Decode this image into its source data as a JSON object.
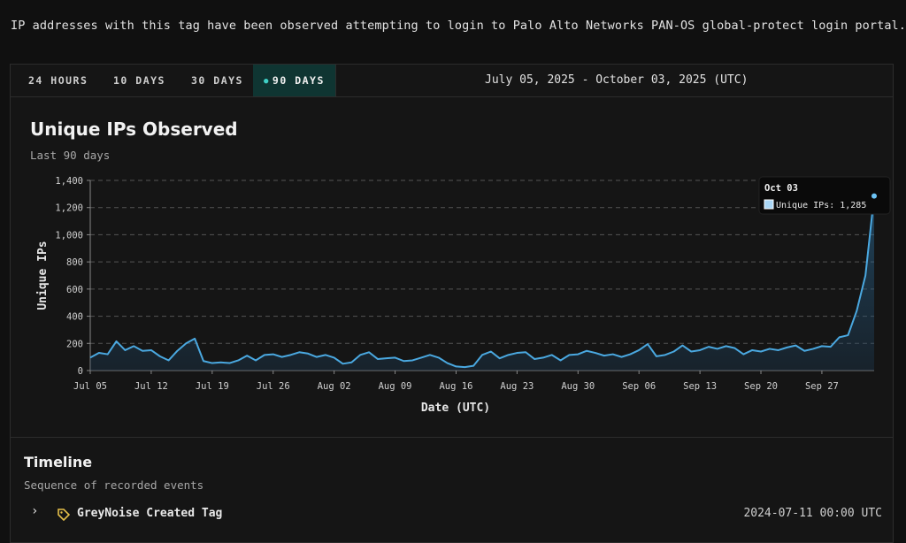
{
  "description": "IP addresses with this tag have been observed attempting to login to Palo Alto Networks PAN-OS global-protect login portal.",
  "tabs": [
    {
      "label": "24 HOURS",
      "active": false
    },
    {
      "label": "10 DAYS",
      "active": false
    },
    {
      "label": "30 DAYS",
      "active": false
    },
    {
      "label": "90 DAYS",
      "active": true
    }
  ],
  "date_range": "July 05, 2025 - October 03, 2025 (UTC)",
  "chart": {
    "title": "Unique IPs Observed",
    "subtitle": "Last 90 days"
  },
  "tooltip": {
    "date": "Oct 03",
    "label": "Unique IPs: 1,285"
  },
  "chart_data": {
    "type": "area",
    "title": "Unique IPs Observed",
    "subtitle": "Last 90 days",
    "xlabel": "Date (UTC)",
    "ylabel": "Unique IPs",
    "ylim": [
      0,
      1400
    ],
    "yticks": [
      "0",
      "200",
      "400",
      "600",
      "800",
      "1,000",
      "1,200",
      "1,400"
    ],
    "ytick_values": [
      0,
      200,
      400,
      600,
      800,
      1000,
      1200,
      1400
    ],
    "xticks": [
      "Jul 05",
      "Jul 12",
      "Jul 19",
      "Jul 26",
      "Aug 02",
      "Aug 09",
      "Aug 16",
      "Aug 23",
      "Aug 30",
      "Sep 06",
      "Sep 13",
      "Sep 20",
      "Sep 27"
    ],
    "xtick_index": [
      0,
      7,
      14,
      21,
      28,
      35,
      42,
      49,
      56,
      63,
      70,
      77,
      84
    ],
    "grid": true,
    "legend": "none",
    "series": [
      {
        "name": "Unique IPs",
        "color": "#4aa8e0",
        "values": [
          95,
          130,
          120,
          215,
          150,
          180,
          145,
          150,
          105,
          75,
          145,
          200,
          235,
          70,
          55,
          60,
          55,
          75,
          110,
          75,
          115,
          120,
          100,
          115,
          135,
          125,
          100,
          115,
          95,
          50,
          60,
          115,
          135,
          85,
          90,
          95,
          70,
          75,
          95,
          115,
          95,
          55,
          30,
          25,
          35,
          115,
          140,
          90,
          115,
          130,
          135,
          85,
          95,
          115,
          75,
          115,
          120,
          145,
          130,
          110,
          120,
          100,
          120,
          150,
          195,
          105,
          115,
          140,
          185,
          140,
          150,
          175,
          160,
          180,
          165,
          120,
          150,
          140,
          160,
          150,
          170,
          185,
          145,
          160,
          180,
          175,
          245,
          260,
          440,
          700,
          1285
        ]
      }
    ]
  },
  "timeline": {
    "title": "Timeline",
    "subtitle": "Sequence of recorded events",
    "events": [
      {
        "name": "GreyNoise Created Tag",
        "time": "2024-07-11 00:00 UTC"
      }
    ]
  }
}
